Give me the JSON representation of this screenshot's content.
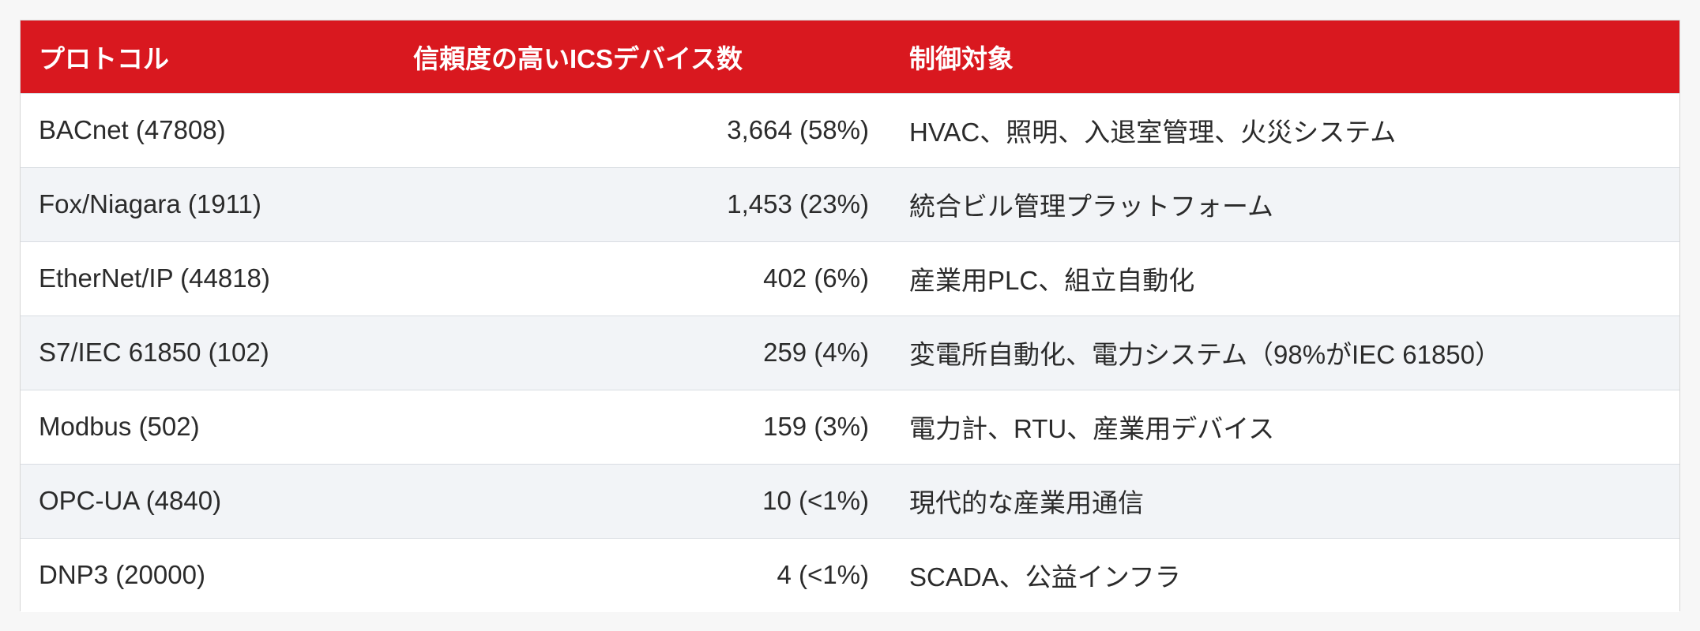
{
  "table": {
    "headers": [
      "プロトコル",
      "信頼度の高いICSデバイス数",
      "制御対象"
    ],
    "rows": [
      {
        "protocol": "BACnet (47808)",
        "count": "3,664 (58%)",
        "target": "HVAC、照明、入退室管理、火災システム"
      },
      {
        "protocol": "Fox/Niagara (1911)",
        "count": "1,453 (23%)",
        "target": "統合ビル管理プラットフォーム"
      },
      {
        "protocol": "EtherNet/IP (44818)",
        "count": "402 (6%)",
        "target": "産業用PLC、組立自動化"
      },
      {
        "protocol": "S7/IEC 61850 (102)",
        "count": "259 (4%)",
        "target": "変電所自動化、電力システム（98%がIEC 61850）"
      },
      {
        "protocol": "Modbus (502)",
        "count": "159 (3%)",
        "target": "電力計、RTU、産業用デバイス"
      },
      {
        "protocol": "OPC-UA (4840)",
        "count": "10 (<1%)",
        "target": "現代的な産業用通信"
      },
      {
        "protocol": "DNP3 (20000)",
        "count": "4 (<1%)",
        "target": "SCADA、公益インフラ"
      }
    ]
  },
  "colors": {
    "header_bg": "#d9181f",
    "header_text": "#ffffff",
    "row_alt_bg": "#f2f4f7",
    "text": "#2b2b2b"
  }
}
